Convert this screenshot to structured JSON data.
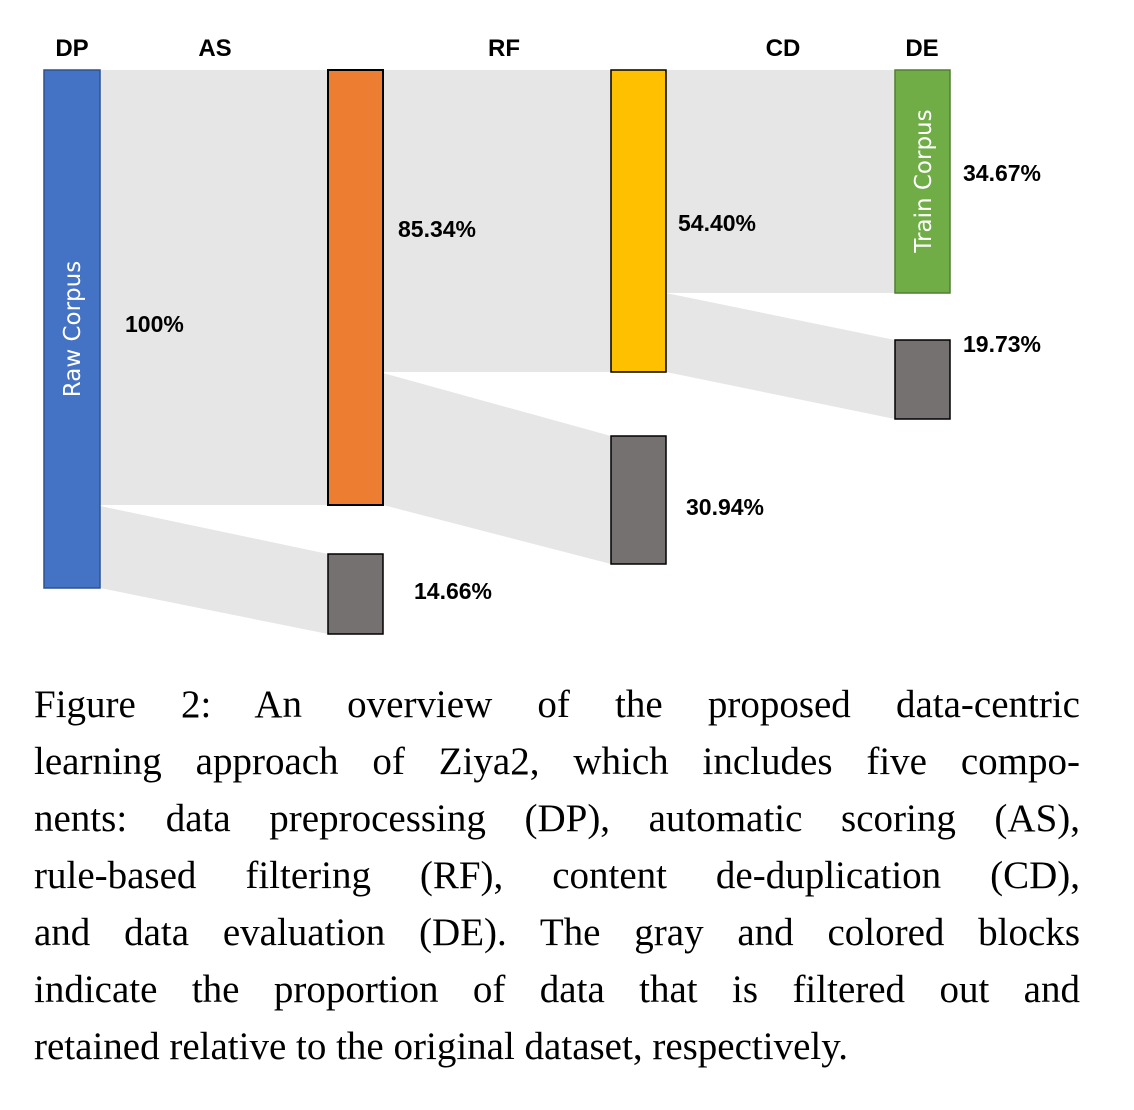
{
  "diagram": {
    "stages": [
      "DP",
      "AS",
      "RF",
      "CD",
      "DE"
    ],
    "blocks": [
      {
        "id": "raw",
        "label": "Raw Corpus",
        "value_pct": "100%",
        "kind": "retained",
        "color": "#4472C4"
      },
      {
        "id": "as_keep",
        "label": "",
        "value_pct": "85.34%",
        "kind": "retained",
        "color": "#ED7D31"
      },
      {
        "id": "as_drop",
        "label": "",
        "value_pct": "14.66%",
        "kind": "filtered",
        "color": "#767171"
      },
      {
        "id": "rf_keep",
        "label": "",
        "value_pct": "54.40%",
        "kind": "retained",
        "color": "#FFC000"
      },
      {
        "id": "rf_drop",
        "label": "",
        "value_pct": "30.94%",
        "kind": "filtered",
        "color": "#767171"
      },
      {
        "id": "train",
        "label": "Train Corpus",
        "value_pct": "34.67%",
        "kind": "retained",
        "color": "#70AD47"
      },
      {
        "id": "cd_drop",
        "label": "",
        "value_pct": "19.73%",
        "kind": "filtered",
        "color": "#767171"
      }
    ],
    "flow_color": "#E7E6E6"
  },
  "caption": {
    "lines": [
      "Figure 2:  An overview of the proposed data-centric",
      "learning approach of Ziya2, which includes five compo-",
      "nents: data preprocessing (DP), automatic scoring (AS),",
      "rule-based filtering (RF), content de-duplication (CD),",
      "and data evaluation (DE). The gray and colored blocks",
      "indicate the proportion of data that is filtered out and",
      "retained relative to the original dataset, respectively."
    ]
  }
}
